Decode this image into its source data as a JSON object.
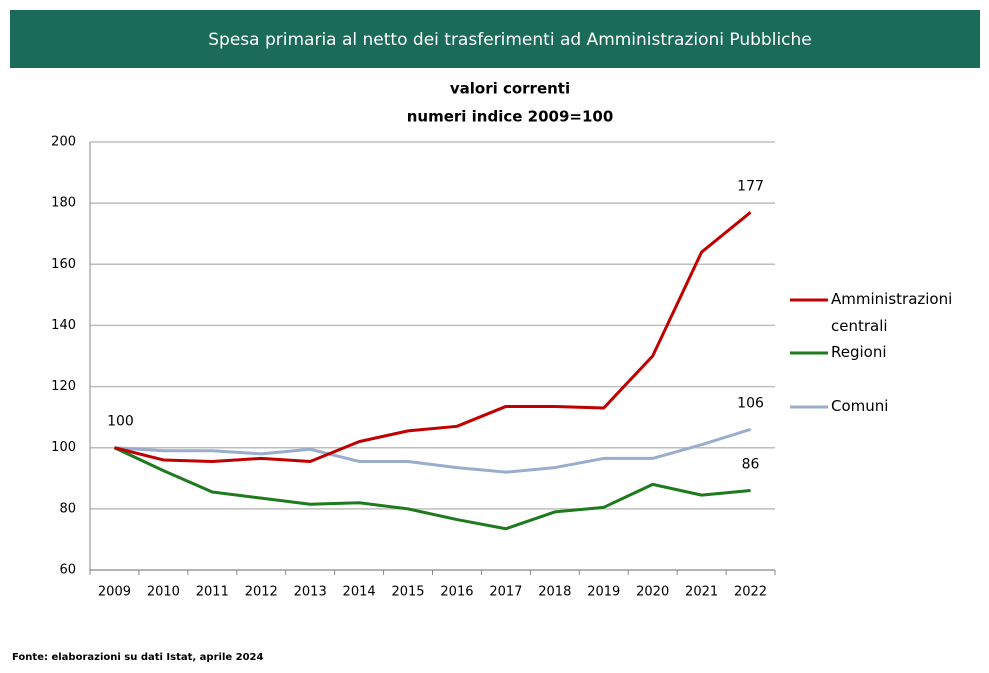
{
  "chart_data": {
    "type": "line",
    "title": "Spesa  primaria al netto dei trasferimenti ad Amministrazioni Pubbliche",
    "subtitle": [
      "valori correnti",
      "numeri indice 2009=100"
    ],
    "source": "Fonte: elaborazioni su dati Istat, aprile 2024",
    "categories": [
      "2009",
      "2010",
      "2011",
      "2012",
      "2013",
      "2014",
      "2015",
      "2016",
      "2017",
      "2018",
      "2019",
      "2020",
      "2021",
      "2022"
    ],
    "series": [
      {
        "name": "Amministrazioni centrali",
        "color": "#c00000",
        "values": [
          100,
          96,
          95.5,
          96.5,
          95.5,
          102,
          105.5,
          107,
          113.5,
          113.5,
          113,
          130,
          164,
          177
        ],
        "value_labels": [
          "100",
          null,
          null,
          null,
          null,
          null,
          null,
          null,
          null,
          null,
          null,
          null,
          null,
          "177"
        ]
      },
      {
        "name": "Regioni",
        "color": "#1f7a1f",
        "values": [
          100,
          92.5,
          85.5,
          83.5,
          81.5,
          82,
          80,
          76.5,
          73.5,
          79,
          80.5,
          88,
          84.5,
          86
        ],
        "value_labels": [
          null,
          null,
          null,
          null,
          null,
          null,
          null,
          null,
          null,
          null,
          null,
          null,
          null,
          "86"
        ]
      },
      {
        "name": "Comuni",
        "color": "#9aadcc",
        "values": [
          100,
          99,
          99,
          98,
          99.5,
          95.5,
          95.5,
          93.5,
          92,
          93.5,
          96.5,
          96.5,
          101,
          106
        ],
        "value_labels": [
          null,
          null,
          null,
          null,
          null,
          null,
          null,
          null,
          null,
          null,
          null,
          null,
          null,
          "106"
        ]
      }
    ],
    "ylim": [
      60,
      200
    ],
    "yticks": [
      60,
      80,
      100,
      120,
      140,
      160,
      180,
      200
    ],
    "grid": true,
    "legend": "right"
  }
}
